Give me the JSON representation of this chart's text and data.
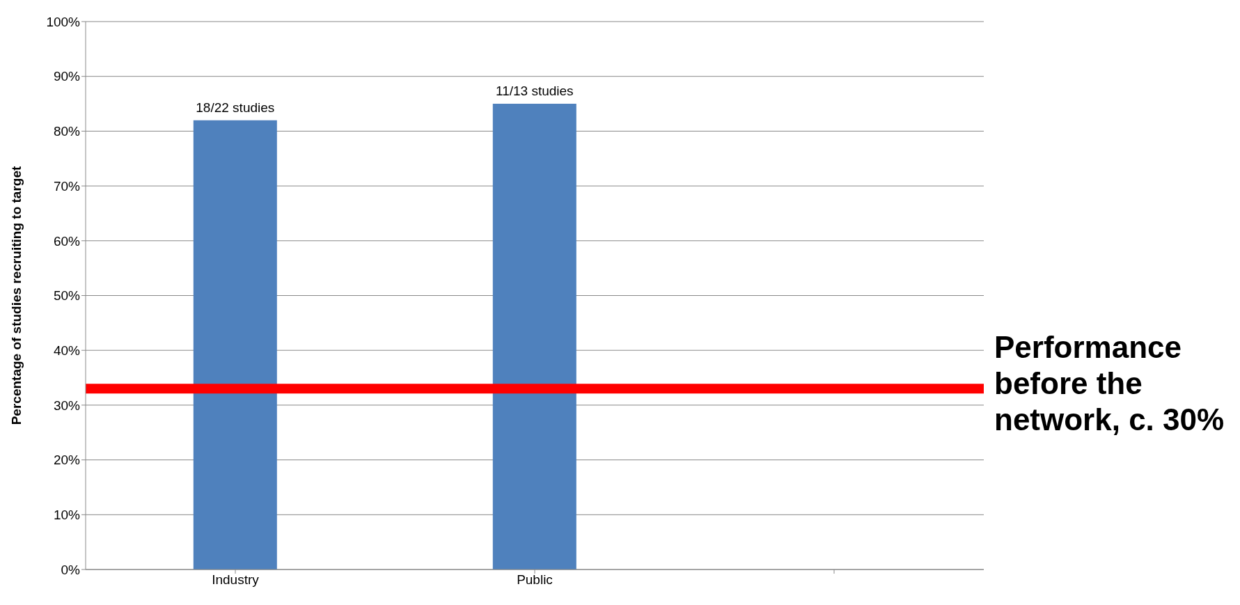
{
  "chart_data": {
    "type": "bar",
    "ylabel": "Percentage of studies recruiting to target",
    "categories": [
      "Industry",
      "Public",
      null
    ],
    "values": [
      82,
      85,
      null
    ],
    "value_labels": [
      "18/22 studies",
      "11/13 studies",
      null
    ],
    "color": "#4f81bd",
    "ylim": [
      0,
      100
    ],
    "yticks": [
      {
        "value": 0,
        "label": "0%"
      },
      {
        "value": 10,
        "label": "10%"
      },
      {
        "value": 20,
        "label": "20%"
      },
      {
        "value": 30,
        "label": "30%"
      },
      {
        "value": 40,
        "label": "40%"
      },
      {
        "value": 50,
        "label": "50%"
      },
      {
        "value": 60,
        "label": "60%"
      },
      {
        "value": 70,
        "label": "70%"
      },
      {
        "value": 80,
        "label": "80%"
      },
      {
        "value": 90,
        "label": "90%"
      },
      {
        "value": 100,
        "label": "100%"
      }
    ],
    "grid": "y",
    "ref_lines": [
      {
        "axis": "y",
        "value": 33,
        "label": "Performance before the network, c. 30%",
        "color": "#ff0000"
      }
    ]
  }
}
